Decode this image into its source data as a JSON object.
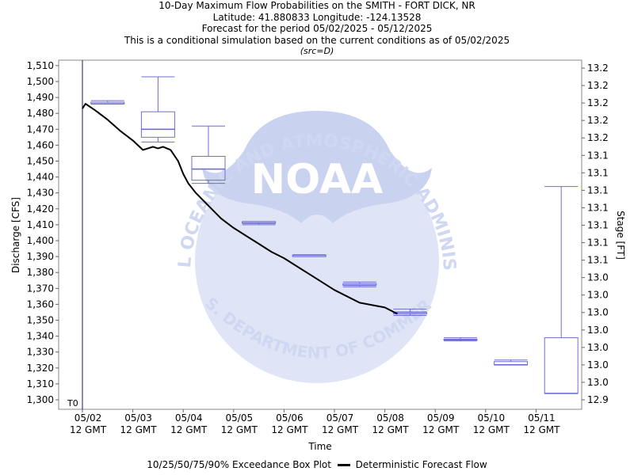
{
  "titles": {
    "line1": "10-Day Maximum Flow Probabilities on the SMITH - FORT DICK, NR",
    "line2": "Latitude: 41.880833 Longitude: -124.13528",
    "line3": "Forecast for the period 05/02/2025 - 05/12/2025",
    "line4": "This is a conditional simulation based on the current conditions as of 05/02/2025",
    "line5": "(src=D)"
  },
  "watermark": {
    "logo_text": "NOAA",
    "arc_top": "NATIONAL OCEANIC AND ATMOSPHERIC ADMINISTRATION",
    "arc_bottom": "U.S. DEPARTMENT OF COMMERCE"
  },
  "legend": {
    "boxplot_label": "10/25/50/75/90% Exceedance Box Plot",
    "line_label": "Deterministic Forecast Flow"
  },
  "colors": {
    "box": "#6e6ed2",
    "line": "#000000",
    "t0_line": "#3c3c8c",
    "watermark_light": "#dfe5f7",
    "watermark_mid": "#c9d2ef"
  },
  "chart_data": {
    "type": "box",
    "xlabel": "Time",
    "ylabel": "Discharge [CFS]",
    "y2label": "Stage [FT]",
    "ylim": [
      1300,
      1510
    ],
    "grid": false,
    "legend_position": "bottom",
    "t0_label": "T0",
    "yticks": [
      "1,300",
      "1,310",
      "1,320",
      "1,330",
      "1,340",
      "1,350",
      "1,360",
      "1,370",
      "1,380",
      "1,390",
      "1,400",
      "1,410",
      "1,420",
      "1,430",
      "1,440",
      "1,450",
      "1,460",
      "1,470",
      "1,480",
      "1,490",
      "1,500",
      "1,510"
    ],
    "y2ticks": [
      "12.9",
      "13.0",
      "13.0",
      "13.0",
      "13.0",
      "13.0",
      "13.0",
      "13.0",
      "13.1",
      "13.1",
      "13.1",
      "13.1",
      "13.1",
      "13.1",
      "13.1",
      "13.2",
      "13.2",
      "13.2",
      "13.2",
      "13.2"
    ],
    "xticks": [
      {
        "line1": "05/02",
        "line2": "12 GMT"
      },
      {
        "line1": "05/03",
        "line2": "12 GMT"
      },
      {
        "line1": "05/04",
        "line2": "12 GMT"
      },
      {
        "line1": "05/05",
        "line2": "12 GMT"
      },
      {
        "line1": "05/06",
        "line2": "12 GMT"
      },
      {
        "line1": "05/07",
        "line2": "12 GMT"
      },
      {
        "line1": "05/08",
        "line2": "12 GMT"
      },
      {
        "line1": "05/09",
        "line2": "12 GMT"
      },
      {
        "line1": "05/10",
        "line2": "12 GMT"
      },
      {
        "line1": "05/11",
        "line2": "12 GMT"
      }
    ],
    "boxes": [
      {
        "day": 0.5,
        "p90": 1488,
        "p75": 1487,
        "p50": 1486,
        "p25": 1486,
        "p10": 1486
      },
      {
        "day": 1.5,
        "p90": 1503,
        "p75": 1481,
        "p50": 1470,
        "p25": 1465,
        "p10": 1462
      },
      {
        "day": 2.5,
        "p90": 1472,
        "p75": 1453,
        "p50": 1445,
        "p25": 1438,
        "p10": 1436
      },
      {
        "day": 3.5,
        "p90": 1412,
        "p75": 1412,
        "p50": 1411,
        "p25": 1411,
        "p10": 1410
      },
      {
        "day": 4.5,
        "p90": 1391,
        "p75": 1391,
        "p50": 1391,
        "p25": 1390,
        "p10": 1390
      },
      {
        "day": 5.5,
        "p90": 1374,
        "p75": 1373,
        "p50": 1372,
        "p25": 1372,
        "p10": 1371
      },
      {
        "day": 6.5,
        "p90": 1357,
        "p75": 1355,
        "p50": 1355,
        "p25": 1354,
        "p10": 1353
      },
      {
        "day": 7.5,
        "p90": 1339,
        "p75": 1338,
        "p50": 1338,
        "p25": 1338,
        "p10": 1337
      },
      {
        "day": 8.5,
        "p90": 1325,
        "p75": 1324,
        "p50": 1322,
        "p25": 1322,
        "p10": 1322
      },
      {
        "day": 9.5,
        "p90": 1434,
        "p75": 1339,
        "p50": 1304,
        "p25": 1304,
        "p10": 1304
      }
    ],
    "series": [
      {
        "name": "Deterministic Forecast Flow",
        "x": [
          0.0,
          0.06,
          0.25,
          0.5,
          0.75,
          1.0,
          1.2,
          1.4,
          1.5,
          1.6,
          1.75,
          1.9,
          2.0,
          2.1,
          2.25,
          2.5,
          2.75,
          3.0,
          3.25,
          3.5,
          3.75,
          4.0,
          4.5,
          5.0,
          5.5,
          6.0,
          6.25
        ],
        "y": [
          1483,
          1486,
          1482,
          1476,
          1469,
          1463,
          1457,
          1459,
          1458,
          1459,
          1457,
          1450,
          1442,
          1436,
          1430,
          1422,
          1414,
          1408,
          1403,
          1398,
          1393,
          1389,
          1379,
          1369,
          1361,
          1358,
          1354
        ]
      }
    ]
  }
}
